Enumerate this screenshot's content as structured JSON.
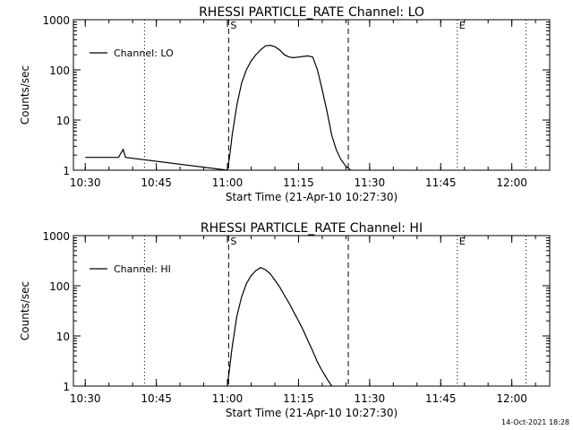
{
  "footer": {
    "timestamp": "14-Oct-2021 18:28"
  },
  "chart_data": [
    {
      "type": "line",
      "title": "RHESSI PARTICLE_RATE Channel: LO",
      "xlabel": "Start Time (21-Apr-10 10:27:30)",
      "ylabel": "Counts/sec",
      "yscale": "log",
      "xlim_minutes_after_start": [
        0,
        100.5
      ],
      "ylim": [
        1,
        1000
      ],
      "x_ticks": [
        "10:30",
        "10:45",
        "11:00",
        "11:15",
        "11:30",
        "11:45",
        "12:00"
      ],
      "y_ticks": [
        "1",
        "10",
        "100",
        "1000"
      ],
      "legend": {
        "position": "top-left",
        "entries": [
          "Channel: LO"
        ]
      },
      "markers": [
        {
          "label": "S",
          "time": "11:00:15",
          "style": "dashed"
        },
        {
          "label": "",
          "time": "11:25:30",
          "style": "dashed"
        },
        {
          "label": "",
          "time": "10:42:30",
          "style": "dotted"
        },
        {
          "label": "E",
          "time": "11:48:30",
          "style": "dotted"
        },
        {
          "label": "",
          "time": "12:03:00",
          "style": "dotted"
        }
      ],
      "series": [
        {
          "name": "Channel: LO",
          "x": [
            "10:30",
            "10:31",
            "10:37",
            "10:38",
            "10:38:30",
            "11:00",
            "11:00:30",
            "11:01",
            "11:02",
            "11:03",
            "11:04",
            "11:05",
            "11:06",
            "11:07",
            "11:08",
            "11:09",
            "11:10",
            "11:11",
            "11:12",
            "11:13",
            "11:14",
            "11:15",
            "11:16",
            "11:17",
            "11:18",
            "11:19",
            "11:20",
            "11:21",
            "11:22",
            "11:23",
            "11:24",
            "11:25",
            "11:26"
          ],
          "y": [
            1.8,
            1.8,
            1.8,
            2.6,
            1.8,
            1.0,
            2.0,
            5,
            20,
            55,
            100,
            150,
            200,
            250,
            300,
            310,
            290,
            250,
            200,
            180,
            175,
            180,
            185,
            190,
            180,
            100,
            40,
            15,
            5,
            2.5,
            1.6,
            1.2,
            1.0
          ]
        }
      ]
    },
    {
      "type": "line",
      "title": "RHESSI PARTICLE_RATE Channel: HI",
      "xlabel": "Start Time (21-Apr-10 10:27:30)",
      "ylabel": "Counts/sec",
      "yscale": "log",
      "xlim_minutes_after_start": [
        0,
        100.5
      ],
      "ylim": [
        1,
        1000
      ],
      "x_ticks": [
        "10:30",
        "10:45",
        "11:00",
        "11:15",
        "11:30",
        "11:45",
        "12:00"
      ],
      "y_ticks": [
        "1",
        "10",
        "100",
        "1000"
      ],
      "legend": {
        "position": "top-left",
        "entries": [
          "Channel: HI"
        ]
      },
      "markers": [
        {
          "label": "S",
          "time": "11:00:15",
          "style": "dashed"
        },
        {
          "label": "",
          "time": "11:25:30",
          "style": "dashed"
        },
        {
          "label": "",
          "time": "10:42:30",
          "style": "dotted"
        },
        {
          "label": "E",
          "time": "11:48:30",
          "style": "dotted"
        },
        {
          "label": "",
          "time": "12:03:00",
          "style": "dotted"
        }
      ],
      "series": [
        {
          "name": "Channel: HI",
          "x": [
            "11:00",
            "11:01",
            "11:02",
            "11:03",
            "11:04",
            "11:05",
            "11:06",
            "11:07",
            "11:08",
            "11:09",
            "11:10",
            "11:11",
            "11:12",
            "11:13",
            "11:14",
            "11:15",
            "11:16",
            "11:17",
            "11:18",
            "11:19",
            "11:20",
            "11:21",
            "11:22"
          ],
          "y": [
            1.0,
            6,
            25,
            60,
            110,
            160,
            200,
            230,
            210,
            175,
            130,
            95,
            65,
            45,
            30,
            20,
            13,
            8,
            5,
            3,
            2,
            1.4,
            1.0
          ]
        }
      ]
    }
  ]
}
